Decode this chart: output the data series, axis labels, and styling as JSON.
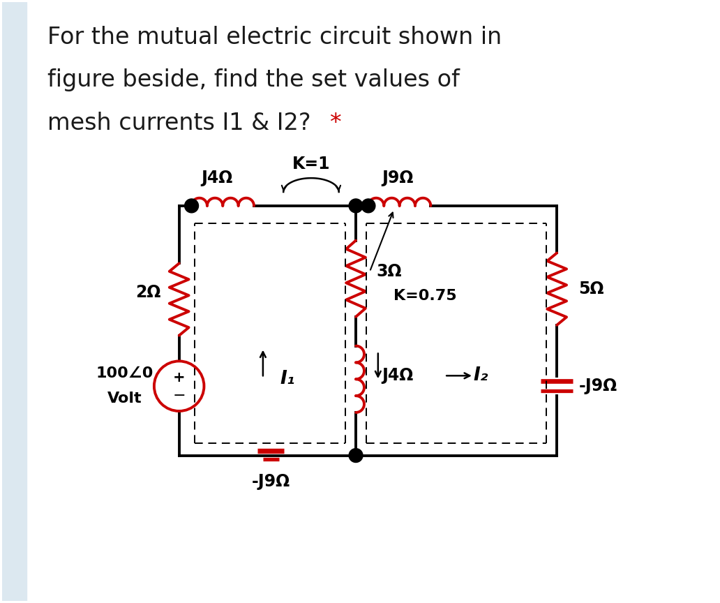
{
  "title_line1": "For the mutual electric circuit shown in",
  "title_line2": "figure beside, find the set values of",
  "title_line3_main": "mesh currents I1 & I2? ",
  "title_line3_star": "*",
  "bg_color": "#ffffff",
  "sidebar_color": "#dce8f0",
  "circuit_color": "#cc0000",
  "black": "#000000",
  "white": "#ffffff",
  "text_color": "#1a1a1a",
  "star_color": "#cc0000",
  "title_fontsize": 24,
  "label_fontsize": 17,
  "k1_label": "K=1",
  "k075_label": "K=0.75",
  "j4_top": "J4Ω",
  "j9_top": "J9Ω",
  "r2": "2Ω",
  "r3": "3Ω",
  "r5": "5Ω",
  "j4_bot": "J4Ω",
  "j9_right": "-J9Ω",
  "j9_btm": "-J9Ω",
  "i1_label": "I₁",
  "i2_label": "I₂",
  "v_top": "100∠0",
  "v_bot": "Volt"
}
